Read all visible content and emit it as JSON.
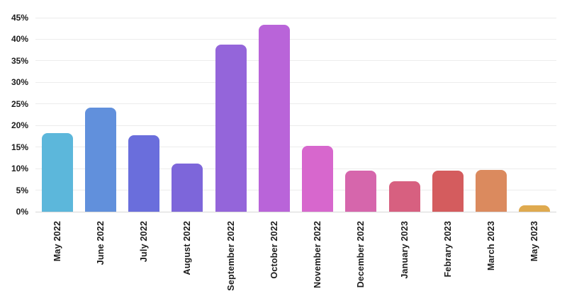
{
  "chart_data": {
    "type": "bar",
    "title": "",
    "xlabel": "",
    "ylabel": "",
    "unit": "%",
    "categories": [
      "May 2022",
      "June 2022",
      "July 2022",
      "August 2022",
      "September 2022",
      "October 2022",
      "November 2022",
      "December 2022",
      "January 2023",
      "Febrary 2023",
      "March 2023",
      "May 2023"
    ],
    "values": [
      18.2,
      24.1,
      17.8,
      11.2,
      38.7,
      43.4,
      15.2,
      9.5,
      7.0,
      9.5,
      9.7,
      1.5
    ],
    "bar_colors": [
      "#5cb7db",
      "#6190dc",
      "#6a6edc",
      "#7d66da",
      "#9465da",
      "#b964d9",
      "#d767cd",
      "#d666ac",
      "#d76080",
      "#d45c5e",
      "#db8a5e",
      "#dfaa4f"
    ],
    "ylim": [
      0,
      45
    ],
    "y_tick_step": 5,
    "y_tick_labels": [
      "0%",
      "5%",
      "10%",
      "15%",
      "20%",
      "25%",
      "30%",
      "35%",
      "40%",
      "45%"
    ],
    "grid": "horizontal",
    "legend": "none",
    "x_label_rotation": "vertical-bottom-to-top"
  },
  "colors": {
    "background": "#ffffff",
    "gridline": "#ececec",
    "axis_line": "#d7d7d7",
    "tick_label": "#1c1c1c"
  }
}
